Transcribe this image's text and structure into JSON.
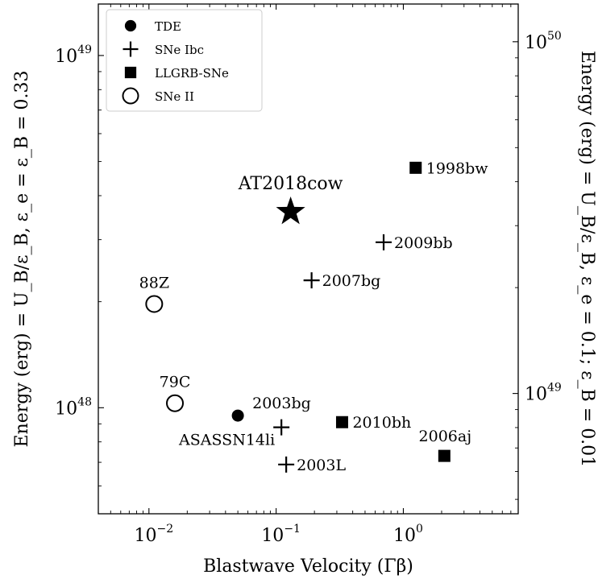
{
  "chart_data": {
    "type": "scatter",
    "xlabel": "Blastwave Velocity (Γβ)",
    "ylabel_left": "Energy (erg) = U_B/ε_B,   ε_e = ε_B = 0.33",
    "ylabel_right": "Energy (erg) = U_B/ε_B,   ε_e = 0.1; ε_B = 0.01",
    "x_scale": "log",
    "y_scale": "log",
    "xlim": [
      0.004,
      8
    ],
    "ylim_left": [
      5e+47,
      1.4e+49
    ],
    "ylim_right": [
      4.55e+48,
      1.28e+50
    ],
    "x_ticks": [
      {
        "value": 0.01,
        "label": "10",
        "exp": "−2"
      },
      {
        "value": 0.1,
        "label": "10",
        "exp": "−1"
      },
      {
        "value": 1,
        "label": "10",
        "exp": "0"
      }
    ],
    "y_ticks_left": [
      {
        "value": 1e+48,
        "label": "10",
        "exp": "48"
      },
      {
        "value": 1e+49,
        "label": "10",
        "exp": "49"
      }
    ],
    "y_ticks_right": [
      {
        "value": 1e+49,
        "label": "10",
        "exp": "49"
      },
      {
        "value": 1e+50,
        "label": "10",
        "exp": "50"
      }
    ],
    "legend": {
      "position": "top-left",
      "entries": [
        {
          "marker": "filled-circle",
          "label": "TDE"
        },
        {
          "marker": "plus",
          "label": "SNe Ibc"
        },
        {
          "marker": "filled-square",
          "label": "LLGRB-SNe"
        },
        {
          "marker": "open-circle",
          "label": "SNe II"
        }
      ]
    },
    "series": [
      {
        "name": "TDE",
        "marker": "filled-circle",
        "points": [
          {
            "x": 0.05,
            "y": 9.5e+47,
            "label": "2003bg",
            "label_pos": "above-right"
          }
        ]
      },
      {
        "name": "SNe Ibc",
        "marker": "plus",
        "points": [
          {
            "x": 0.7,
            "y": 2.95e+48,
            "label": "2009bb",
            "label_pos": "right"
          },
          {
            "x": 0.19,
            "y": 2.3e+48,
            "label": "2007bg",
            "label_pos": "right"
          },
          {
            "x": 0.11,
            "y": 8.8e+47,
            "label": "ASASSN14li",
            "label_pos": "below-left"
          },
          {
            "x": 0.12,
            "y": 6.9e+47,
            "label": "2003L",
            "label_pos": "right"
          }
        ]
      },
      {
        "name": "LLGRB-SNe",
        "marker": "filled-square",
        "points": [
          {
            "x": 1.25,
            "y": 4.8e+48,
            "label": "1998bw",
            "label_pos": "right"
          },
          {
            "x": 0.33,
            "y": 9.1e+47,
            "label": "2010bh",
            "label_pos": "right"
          },
          {
            "x": 2.1,
            "y": 7.3e+47,
            "label": "2006aj",
            "label_pos": "above-left"
          }
        ]
      },
      {
        "name": "SNe II",
        "marker": "open-circle",
        "points": [
          {
            "x": 0.011,
            "y": 1.97e+48,
            "label": "88Z",
            "label_pos": "above"
          },
          {
            "x": 0.016,
            "y": 1.03e+48,
            "label": "79C",
            "label_pos": "above"
          }
        ]
      },
      {
        "name": "AT2018cow",
        "marker": "star",
        "points": [
          {
            "x": 0.13,
            "y": 3.6e+48,
            "label": "AT2018cow",
            "label_pos": "above"
          }
        ]
      }
    ]
  }
}
